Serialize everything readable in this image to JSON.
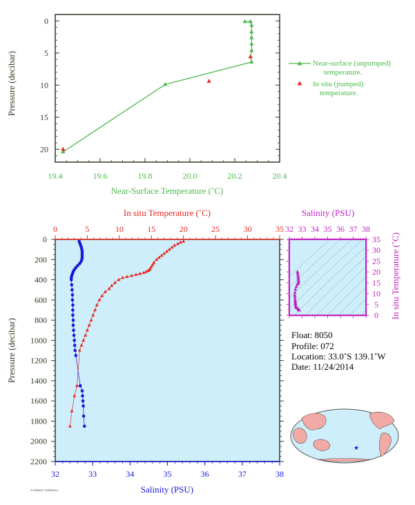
{
  "colors": {
    "green": "#4cb84c",
    "red": "#e8271f",
    "blue": "#1717d6",
    "magenta": "#c21fc2",
    "panel_bg": "#cdeefa",
    "axis_dark": "#2d3b24"
  },
  "top_chart": {
    "xlabel": "Near-Surface Temperature (˚C)",
    "ylabel": "Pressure (decibar)",
    "xticks": [
      "19.4",
      "19.6",
      "19.8",
      "20.0",
      "20.2",
      "20.4"
    ],
    "yticks": [
      "0",
      "5",
      "10",
      "15",
      "20"
    ],
    "legend": {
      "unpumped_line1": "Near-surface (unpumped)",
      "unpumped_line2": "temperature.",
      "pumped_line1": "In situ (pumped)",
      "pumped_line2": "temperature."
    }
  },
  "main_chart": {
    "top_label": "In situ Temperature (˚C)",
    "bottom_label": "Salinity (PSU)",
    "ylabel": "Pressure (decibar)",
    "temp_ticks": [
      "0",
      "5",
      "10",
      "15",
      "20",
      "25",
      "30",
      "35"
    ],
    "sal_ticks": [
      "32",
      "33",
      "34",
      "35",
      "36",
      "37",
      "38"
    ],
    "pressure_ticks": [
      "0",
      "200",
      "400",
      "600",
      "800",
      "1000",
      "1200",
      "1400",
      "1600",
      "1800",
      "2000",
      "2200"
    ]
  },
  "ts_chart": {
    "top_label": "Salinity (PSU)",
    "right_label": "In situ Temperature (˚C)",
    "sal_ticks": [
      "32",
      "33",
      "34",
      "35",
      "36",
      "37",
      "38"
    ],
    "temp_ticks": [
      "35",
      "30",
      "25",
      "20",
      "15",
      "10",
      "5",
      "0"
    ]
  },
  "info": {
    "float": "Float:  8050",
    "profile": "Profile:  072",
    "location": "Location:  33.0˚S  139.1˚W",
    "date": "Date:  11/24/2014"
  },
  "footer_text": "FLT8050/7 12/09/2014",
  "chart_data": [
    {
      "type": "line",
      "title": "",
      "xlabel": "Near-Surface Temperature (˚C)",
      "ylabel": "Pressure (decibar)",
      "xlim": [
        19.4,
        20.4
      ],
      "ylim": [
        22,
        -1
      ],
      "series": [
        {
          "name": "Near-surface (unpumped) temperature.",
          "x": [
            20.245,
            20.27,
            20.275,
            20.275,
            20.275,
            20.275,
            20.275,
            20.27,
            20.27,
            20.275,
            19.89,
            19.435
          ],
          "y": [
            0.1,
            0.1,
            0.7,
            1.7,
            2.6,
            3.6,
            4.6,
            5.6,
            5.6,
            6.4,
            9.9,
            20.4
          ]
        },
        {
          "name": "In situ (pumped) temperature.",
          "x": [
            20.27,
            20.085,
            19.435
          ],
          "y": [
            5.6,
            9.4,
            20.0
          ]
        }
      ]
    },
    {
      "type": "line",
      "title": "",
      "ylabel": "Pressure (decibar)",
      "ylim": [
        2200,
        0
      ],
      "series": [
        {
          "name": "In situ Temperature (˚C)",
          "axis": "top",
          "xlim": [
            0,
            35
          ],
          "x": [
            20.0,
            19.5,
            19.1,
            18.6,
            18.2,
            17.8,
            17.4,
            17.0,
            16.6,
            16.2,
            15.8,
            15.4,
            15.2,
            15.0,
            14.8,
            14.7,
            14.5,
            14.2,
            13.8,
            13.2,
            12.6,
            11.9,
            11.2,
            10.5,
            9.9,
            9.3,
            8.8,
            8.4,
            7.8,
            7.3,
            6.9,
            6.5,
            6.2,
            5.9,
            5.6,
            5.3,
            5.0,
            4.7,
            4.4,
            4.1,
            3.8,
            3.4,
            3.0,
            2.6,
            2.3
          ],
          "y": [
            20,
            30,
            45,
            60,
            80,
            100,
            120,
            140,
            160,
            180,
            200,
            230,
            250,
            270,
            290,
            300,
            310,
            320,
            330,
            340,
            350,
            360,
            370,
            380,
            400,
            430,
            460,
            490,
            520,
            560,
            600,
            650,
            700,
            750,
            800,
            850,
            900,
            950,
            1000,
            1050,
            1100,
            1450,
            1550,
            1700,
            1850
          ]
        },
        {
          "name": "Salinity (PSU)",
          "axis": "bottom",
          "xlim": [
            32,
            38
          ],
          "x": [
            32.64,
            32.66,
            32.68,
            32.7,
            32.71,
            32.72,
            32.72,
            32.72,
            32.72,
            32.71,
            32.69,
            32.65,
            32.6,
            32.55,
            32.51,
            32.48,
            32.46,
            32.44,
            32.43,
            32.43,
            32.44,
            32.45,
            32.46,
            32.46,
            32.47,
            32.47,
            32.47,
            32.48,
            32.48,
            32.49,
            32.5,
            32.51,
            32.52,
            32.53,
            32.55,
            32.67,
            32.72,
            32.73,
            32.74,
            32.75,
            32.76,
            32.78
          ],
          "y": [
            20,
            40,
            60,
            80,
            100,
            120,
            140,
            160,
            180,
            200,
            220,
            240,
            260,
            280,
            300,
            320,
            340,
            360,
            380,
            400,
            450,
            500,
            550,
            600,
            650,
            700,
            750,
            800,
            850,
            900,
            950,
            1000,
            1050,
            1100,
            1150,
            1450,
            1500,
            1550,
            1600,
            1650,
            1750,
            1850
          ]
        }
      ]
    },
    {
      "type": "scatter",
      "title": "",
      "xlabel": "Salinity (PSU)",
      "ylabel": "In situ Temperature (˚C)",
      "xlim": [
        32,
        38
      ],
      "ylim": [
        0,
        35
      ],
      "series": [
        {
          "name": "",
          "x": [
            32.64,
            32.66,
            32.68,
            32.7,
            32.71,
            32.72,
            32.72,
            32.69,
            32.62,
            32.55,
            32.48,
            32.44,
            32.43,
            32.44,
            32.45,
            32.46,
            32.47,
            32.48,
            32.49,
            32.51,
            32.53,
            32.55,
            32.67,
            32.73,
            32.76,
            32.78
          ],
          "y": [
            20.0,
            19.1,
            18.2,
            17.4,
            16.6,
            15.8,
            15.2,
            14.7,
            14.2,
            13.2,
            11.9,
            10.5,
            9.3,
            8.4,
            7.3,
            6.5,
            5.9,
            5.3,
            4.7,
            4.1,
            3.8,
            3.4,
            3.0,
            2.6,
            2.4,
            2.3
          ]
        }
      ]
    }
  ]
}
